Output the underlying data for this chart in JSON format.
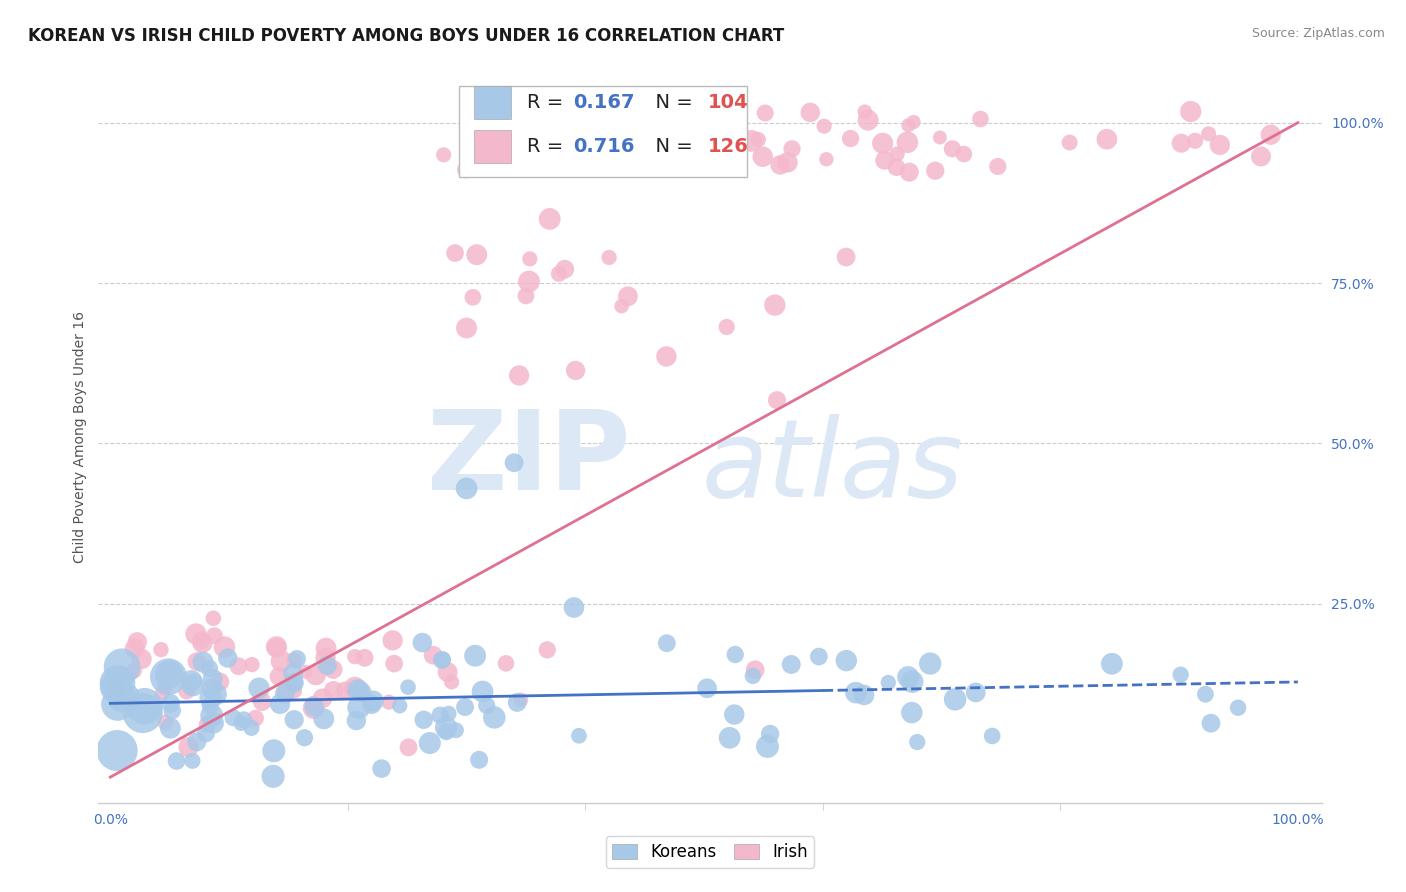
{
  "title": "KOREAN VS IRISH CHILD POVERTY AMONG BOYS UNDER 16 CORRELATION CHART",
  "source": "Source: ZipAtlas.com",
  "ylabel": "Child Poverty Among Boys Under 16",
  "xlim": [
    0.0,
    1.0
  ],
  "ylim": [
    0.0,
    1.0
  ],
  "koreans_R": 0.167,
  "koreans_N": 104,
  "irish_R": 0.716,
  "irish_N": 126,
  "korean_color": "#a8c8e8",
  "irish_color": "#f4b8cc",
  "korean_line_color": "#4472c4",
  "irish_line_color": "#e07090",
  "background_color": "#ffffff",
  "title_fontsize": 12,
  "axis_label_fontsize": 10,
  "tick_fontsize": 10,
  "legend_fontsize": 14,
  "value_color": "#4472c4",
  "n_color": "#e05252"
}
